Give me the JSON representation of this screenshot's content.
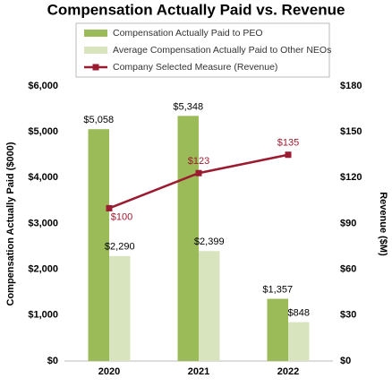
{
  "chart_data": {
    "type": "bar",
    "title": "Compensation Actually Paid vs. Revenue",
    "y_label": "Compensation Actually Paid ($000)",
    "y2_label": "Revenue ($M)",
    "categories": [
      "2020",
      "2021",
      "2022"
    ],
    "series": [
      {
        "name": "Compensation Actually Paid to PEO",
        "type": "bar",
        "color": "#9bbb59",
        "values": [
          5058,
          5348,
          1357
        ],
        "value_labels": [
          "$5,058",
          "$5,348",
          "$1,357"
        ]
      },
      {
        "name": "Average Compensation Actually Paid to Other NEOs",
        "type": "bar",
        "color": "#d7e4bd",
        "values": [
          2290,
          2399,
          848
        ],
        "value_labels": [
          "$2,290",
          "$2,399",
          "$848"
        ]
      },
      {
        "name": "Company Selected Measure (Revenue)",
        "type": "line",
        "axis": "y2",
        "color": "#9b1b30",
        "values": [
          100,
          123,
          135
        ],
        "value_labels": [
          "$100",
          "$123",
          "$135"
        ]
      }
    ],
    "ylim": [
      0,
      6000
    ],
    "yticks": [
      {
        "value": 0,
        "label": "$0"
      },
      {
        "value": 1000,
        "label": "$1,000"
      },
      {
        "value": 2000,
        "label": "$2,000"
      },
      {
        "value": 3000,
        "label": "$3,000"
      },
      {
        "value": 4000,
        "label": "$4,000"
      },
      {
        "value": 5000,
        "label": "$5,000"
      },
      {
        "value": 6000,
        "label": "$6,000"
      }
    ],
    "y2lim": [
      0,
      180
    ],
    "y2ticks": [
      {
        "value": 0,
        "label": "$0"
      },
      {
        "value": 30,
        "label": "$30"
      },
      {
        "value": 60,
        "label": "$60"
      },
      {
        "value": 90,
        "label": "$90"
      },
      {
        "value": 120,
        "label": "$120"
      },
      {
        "value": 150,
        "label": "$150"
      },
      {
        "value": 180,
        "label": "$180"
      }
    ],
    "grid": false
  }
}
